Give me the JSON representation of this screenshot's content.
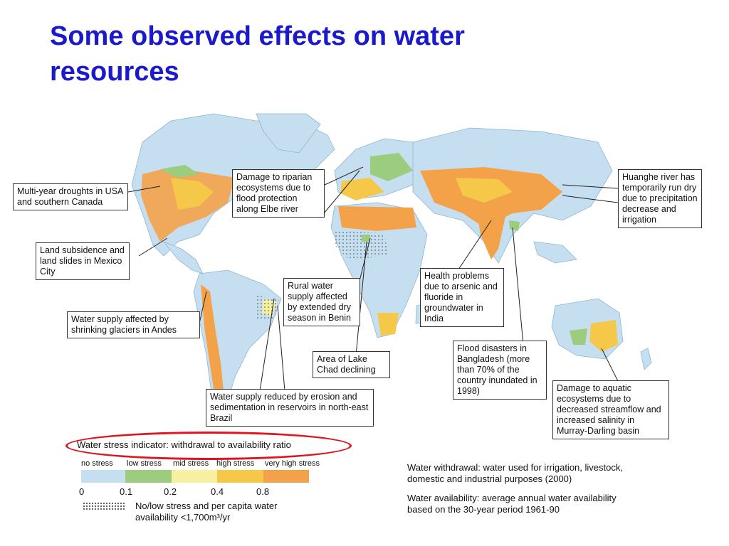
{
  "slide": {
    "title": "Some observed effects on water resources"
  },
  "callouts": [
    {
      "id": "usa",
      "text": "Multi-year droughts in USA and southern Canada"
    },
    {
      "id": "mexico",
      "text": "Land subsidence and land slides in Mexico City"
    },
    {
      "id": "andes",
      "text": "Water supply affected by shrinking glaciers in Andes"
    },
    {
      "id": "elbe",
      "text": "Damage to riparian ecosystems due to flood protection along Elbe river"
    },
    {
      "id": "benin",
      "text": "Rural water supply affected by extended dry season in Benin"
    },
    {
      "id": "chad",
      "text": "Area of Lake Chad declining"
    },
    {
      "id": "brazil",
      "text": "Water supply reduced by erosion and sedimentation in reservoirs in north-east Brazil"
    },
    {
      "id": "india",
      "text": "Health problems due to arsenic and fluoride in groundwater in India"
    },
    {
      "id": "bangladesh",
      "text": "Flood disasters in Bangladesh (more than 70% of the country inundated in 1998)"
    },
    {
      "id": "huanghe",
      "text": "Huanghe river has temporarily run dry due to precipitation decrease and irrigation"
    },
    {
      "id": "murray",
      "text": "Damage to aquatic ecosystems due to decreased streamflow and increased salinity in Murray-Darling basin"
    }
  ],
  "legend": {
    "title": "Water stress indicator: withdrawal to availability ratio",
    "categories": [
      "no stress",
      "low stress",
      "mid stress",
      "high stress",
      "very high stress"
    ],
    "colors": [
      "#c5dff0",
      "#9ccc7e",
      "#f6f0a0",
      "#f5c84a",
      "#f4a24a"
    ],
    "ticks": [
      "0",
      "0.1",
      "0.2",
      "0.4",
      "0.8"
    ],
    "hatch_note_line1": "No/low stress and per capita water",
    "hatch_note_line2": "availability <1,700m³/yr"
  },
  "notes": {
    "withdrawal": "Water withdrawal: water used for irrigation, livestock, domestic and industrial purposes (2000)",
    "availability": "Water availability: average annual water availability based on the 30-year period 1961-90"
  },
  "colors": {
    "title": "#1a1acc",
    "ocean": "#ffffff",
    "land_base": "#c5dff0",
    "highlight_oval": "#e0141e"
  }
}
